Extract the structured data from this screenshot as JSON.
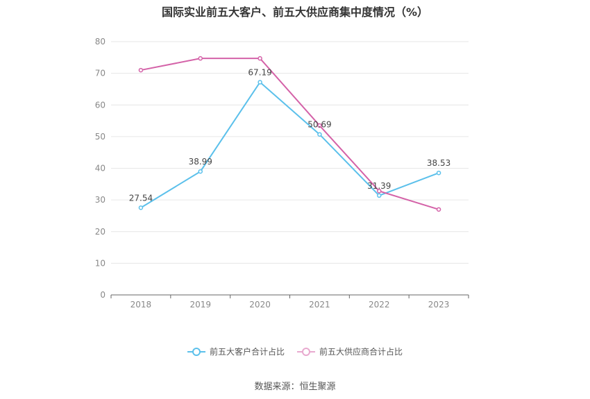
{
  "chart_data": {
    "type": "line",
    "title": "国际实业前五大客户、前五大供应商集中度情况（%）",
    "categories": [
      "2018",
      "2019",
      "2020",
      "2021",
      "2022",
      "2023"
    ],
    "ylim": [
      0,
      80
    ],
    "yticks": [
      0,
      10,
      20,
      30,
      40,
      50,
      60,
      70,
      80
    ],
    "grid": true,
    "legend_position": "bottom",
    "series": [
      {
        "name": "前五大客户合计占比",
        "color": "#5bc0eb",
        "values": [
          27.54,
          38.99,
          67.19,
          50.69,
          31.39,
          38.53
        ],
        "labels": [
          "27.54",
          "38.99",
          "67.19",
          "50.69",
          "31.39",
          "38.53"
        ]
      },
      {
        "name": "前五大供应商合计占比",
        "color": "#d462a8",
        "values": [
          71.0,
          74.7,
          74.7,
          53.5,
          32.8,
          27.0
        ]
      }
    ]
  },
  "source": "数据来源：恒生聚源"
}
